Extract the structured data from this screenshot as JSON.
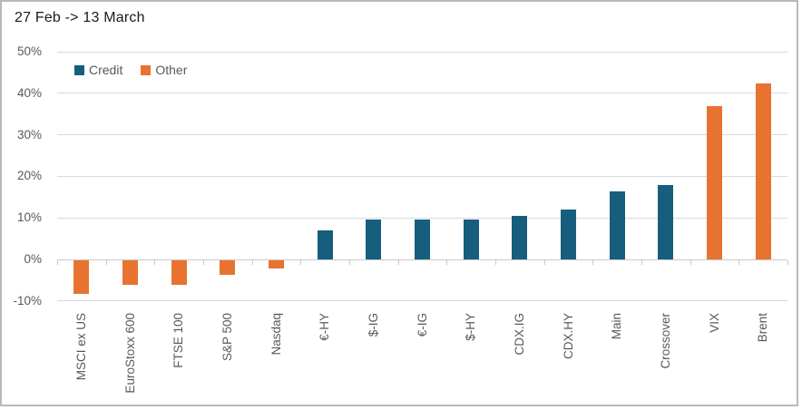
{
  "title": "27 Feb -> 13 March",
  "chart_data": {
    "type": "bar",
    "title": "27 Feb -> 13 March",
    "categories": [
      "MSCI ex US",
      "EuroStoxx 600",
      "FTSE 100",
      "S&P 500",
      "Nasdaq",
      "€-HY",
      "$-IG",
      "€-IG",
      "$-HY",
      "CDX.IG",
      "CDX.HY",
      "Main",
      "Crossover",
      "VIX",
      "Brent"
    ],
    "values": [
      -8.1,
      -5.8,
      -5.8,
      -3.4,
      -2.0,
      6.9,
      9.6,
      9.5,
      9.7,
      10.5,
      12.0,
      16.3,
      17.8,
      37.0,
      42.3
    ],
    "groups": [
      "Other",
      "Other",
      "Other",
      "Other",
      "Other",
      "Credit",
      "Credit",
      "Credit",
      "Credit",
      "Credit",
      "Credit",
      "Credit",
      "Credit",
      "Other",
      "Other"
    ],
    "legend": [
      {
        "name": "Credit",
        "color": "#175E7E"
      },
      {
        "name": "Other",
        "color": "#E87331"
      }
    ],
    "legend_position": "inside-top-left",
    "grid": true,
    "xlabel": "",
    "ylabel": "",
    "x_axis": {
      "label_rotation_deg": 90
    },
    "y_axis": {
      "ylim": [
        -10,
        50
      ],
      "tick_values": [
        50,
        40,
        30,
        20,
        10,
        0,
        -10
      ],
      "tick_labels": [
        "50%",
        "40%",
        "30%",
        "20%",
        "10%",
        "0%",
        "-10%"
      ],
      "unit": "percent"
    },
    "colors": {
      "credit": "#175E7E",
      "other": "#E87331",
      "grid": "#DADADA",
      "axis": "#C9C9C9",
      "axis_text": "#595959",
      "title_text": "#1A1A1A",
      "frame_border": "#B9B9B9"
    }
  }
}
